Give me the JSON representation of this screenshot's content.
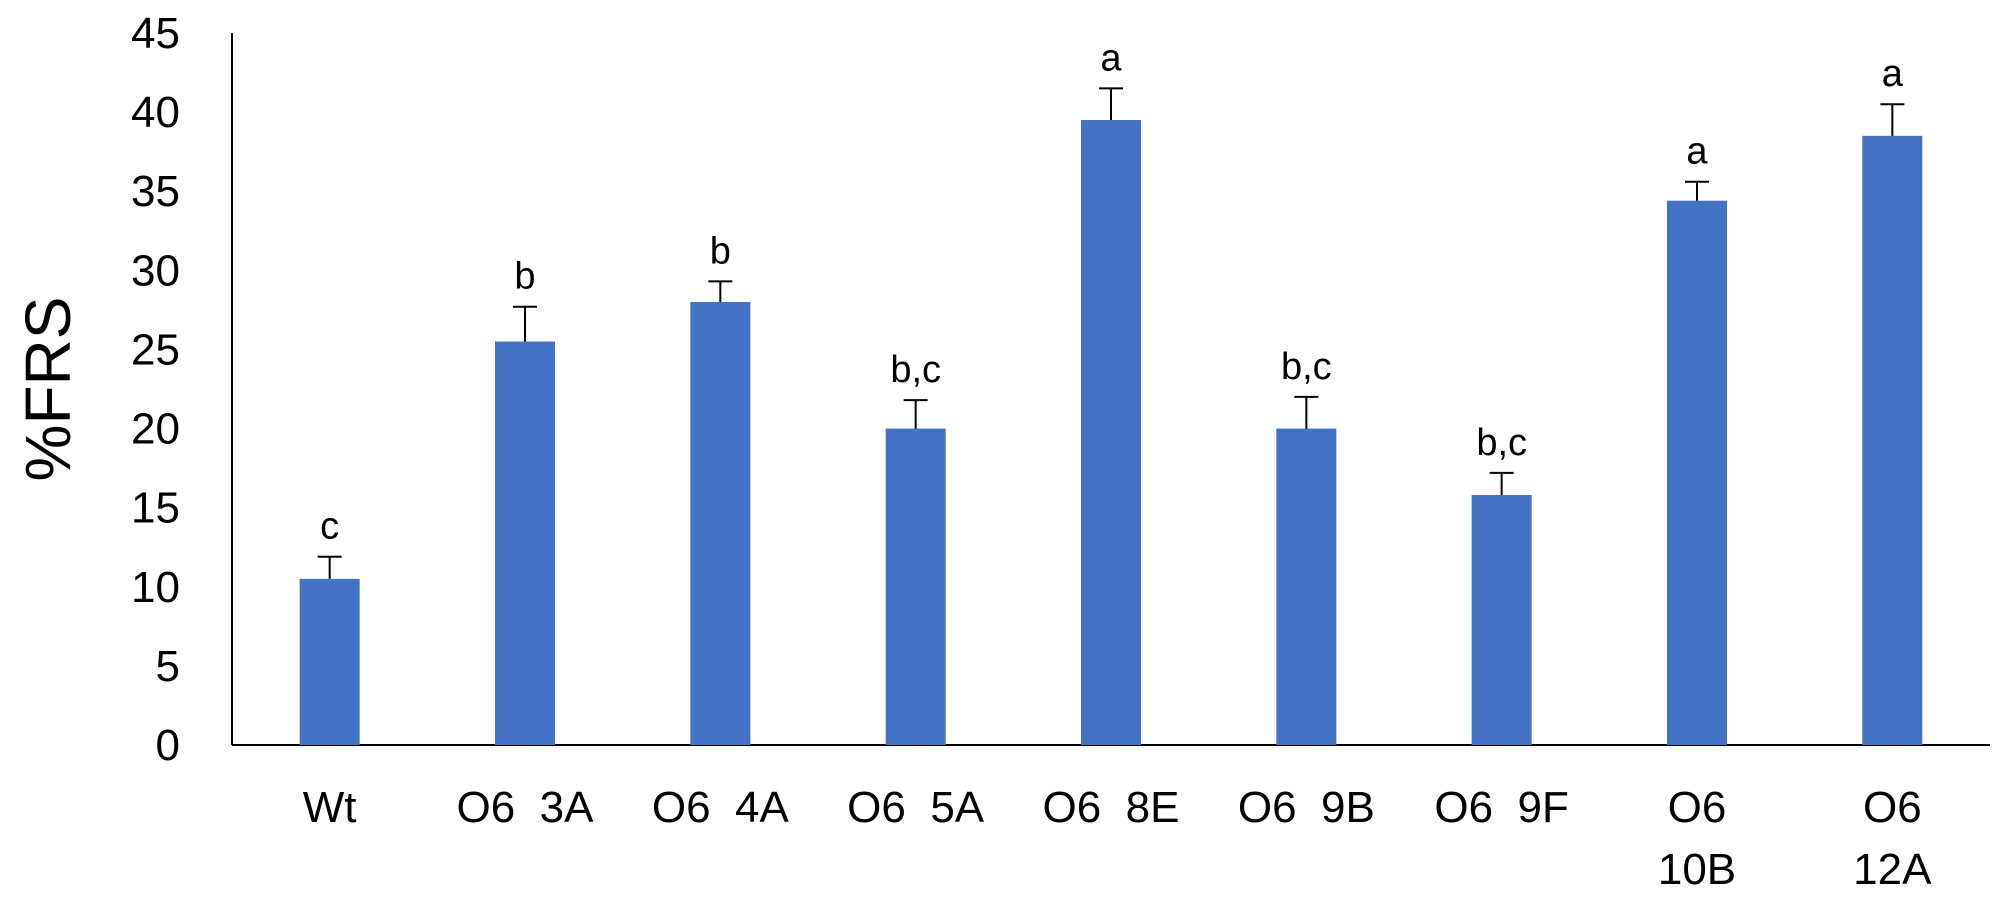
{
  "chart_data": {
    "type": "bar",
    "ylabel": "%FRS",
    "xlabel": "",
    "ylim": [
      0,
      45
    ],
    "y_ticks": [
      "0",
      "5",
      "10",
      "15",
      "20",
      "25",
      "30",
      "35",
      "40",
      "45"
    ],
    "grid": false,
    "legend": "none",
    "bar_color": "#4472C4",
    "categories": [
      [
        "Wt"
      ],
      [
        "O6",
        "3A"
      ],
      [
        "O6",
        "4A"
      ],
      [
        "O6",
        "5A"
      ],
      [
        "O6",
        "8E"
      ],
      [
        "O6",
        "9B"
      ],
      [
        "O6",
        "9F"
      ],
      [
        "O6",
        "10B"
      ],
      [
        "O6",
        "12A"
      ]
    ],
    "values": [
      10.5,
      25.5,
      28.0,
      20.0,
      39.5,
      20.0,
      15.8,
      34.4,
      38.5
    ],
    "errors": [
      1.4,
      2.2,
      1.3,
      1.8,
      2.0,
      2.0,
      1.4,
      1.2,
      2.0
    ],
    "significance": [
      "c",
      "b",
      "b",
      "b,c",
      "a",
      "b,c",
      "b,c",
      "a",
      "a"
    ]
  }
}
